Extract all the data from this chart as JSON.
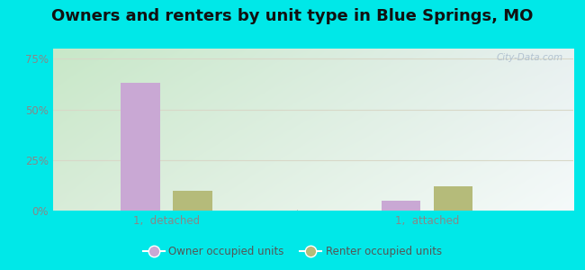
{
  "title": "Owners and renters by unit type in Blue Springs, MO",
  "categories": [
    "1,  detached",
    "1,  attached"
  ],
  "owner_values": [
    63,
    5
  ],
  "renter_values": [
    10,
    12
  ],
  "owner_color": "#c9a8d4",
  "renter_color": "#b5bb7a",
  "owner_label": "Owner occupied units",
  "renter_label": "Renter occupied units",
  "yticks": [
    0,
    25,
    50,
    75
  ],
  "ytick_labels": [
    "0%",
    "25%",
    "50%",
    "75%"
  ],
  "ylim": [
    0,
    80
  ],
  "background_color": "#00e8e8",
  "grad_topleft": "#c8e8c8",
  "grad_topright": "#e8f0f0",
  "grad_bottomleft": "#d8ecd8",
  "grad_bottomright": "#f5fafa",
  "watermark": "City-Data.com",
  "title_fontsize": 13,
  "bar_width": 0.12,
  "tick_color": "#888888",
  "grid_color": "#d8d8c8"
}
